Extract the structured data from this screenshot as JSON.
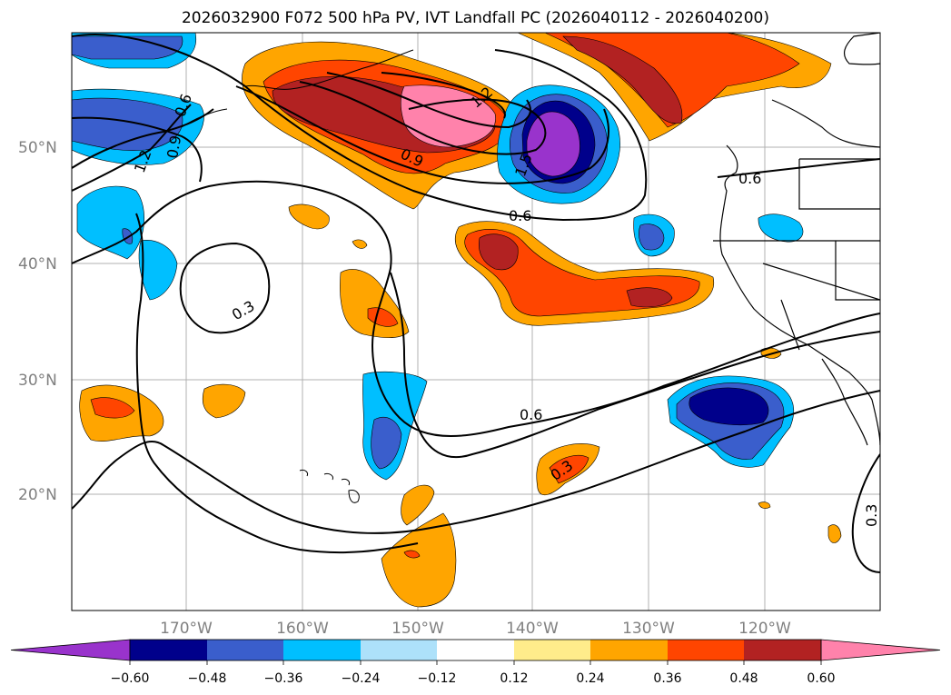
{
  "title": "2026032900 F072 500 hPa PV, IVT Landfall PC (2026040112 - 2026040200)",
  "map": {
    "lat_labels": [
      "50°N",
      "40°N",
      "30°N",
      "20°N"
    ],
    "lon_labels": [
      "170°W",
      "160°W",
      "150°W",
      "140°W",
      "130°W",
      "120°W"
    ],
    "contour_labels": [
      "0.6",
      "0.9",
      "1.2",
      "0.3",
      "0.9",
      "1.2",
      "1.5",
      "0.6",
      "0.6",
      "0.3",
      "0.6",
      "0.3",
      "0.3"
    ]
  },
  "colorbar": {
    "colors": [
      "#9933cc",
      "#00008b",
      "#3a5ecc",
      "#00bfff",
      "#ade1fa",
      "#ffffff",
      "#ffec8b",
      "#ffa500",
      "#ff4500",
      "#b22222",
      "#ff82ab"
    ],
    "tick_labels": [
      "−0.60",
      "−0.48",
      "−0.36",
      "−0.24",
      "−0.12",
      "0.12",
      "0.24",
      "0.36",
      "0.48",
      "0.60"
    ]
  }
}
